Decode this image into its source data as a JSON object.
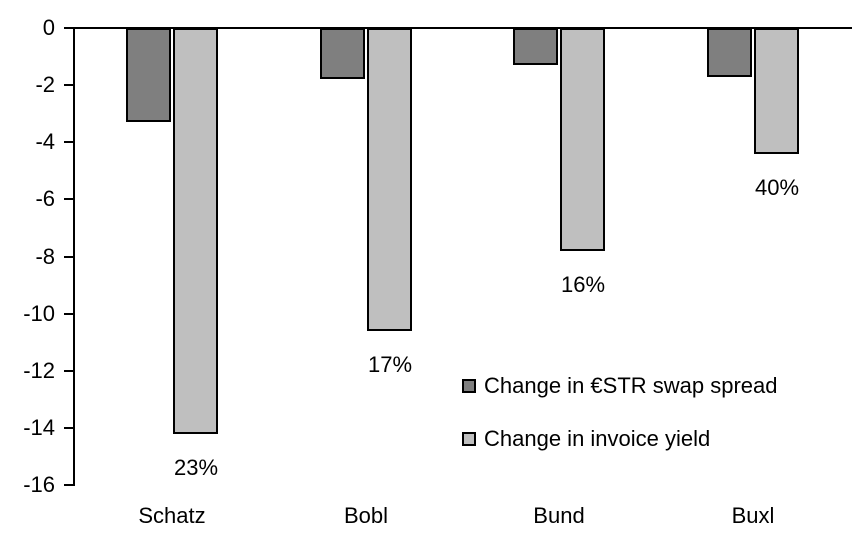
{
  "chart_data": {
    "type": "bar",
    "title": "",
    "xlabel": "",
    "ylabel": "",
    "categories": [
      "Schatz",
      "Bobl",
      "Bund",
      "Buxl"
    ],
    "series": [
      {
        "name": "Change in €STR swap spread",
        "color": "#7f7f7f",
        "values": [
          -3.3,
          -1.8,
          -1.3,
          -1.7
        ]
      },
      {
        "name": "Change in invoice yield",
        "color": "#bfbfbf",
        "values": [
          -14.2,
          -10.6,
          -7.8,
          -4.4
        ],
        "data_labels": [
          "23%",
          "17%",
          "16%",
          "40%"
        ]
      }
    ],
    "ylim": [
      -16,
      0
    ],
    "ytick_step": -2,
    "ytick_labels": [
      "0",
      "-2",
      "-4",
      "-6",
      "-8",
      "-10",
      "-12",
      "-14",
      "-16"
    ],
    "grid": false,
    "legend_position": "inside-right",
    "bar_border_color": "#000000",
    "axis_color": "#000000",
    "text_color": "#000000",
    "background_color": "#ffffff"
  }
}
